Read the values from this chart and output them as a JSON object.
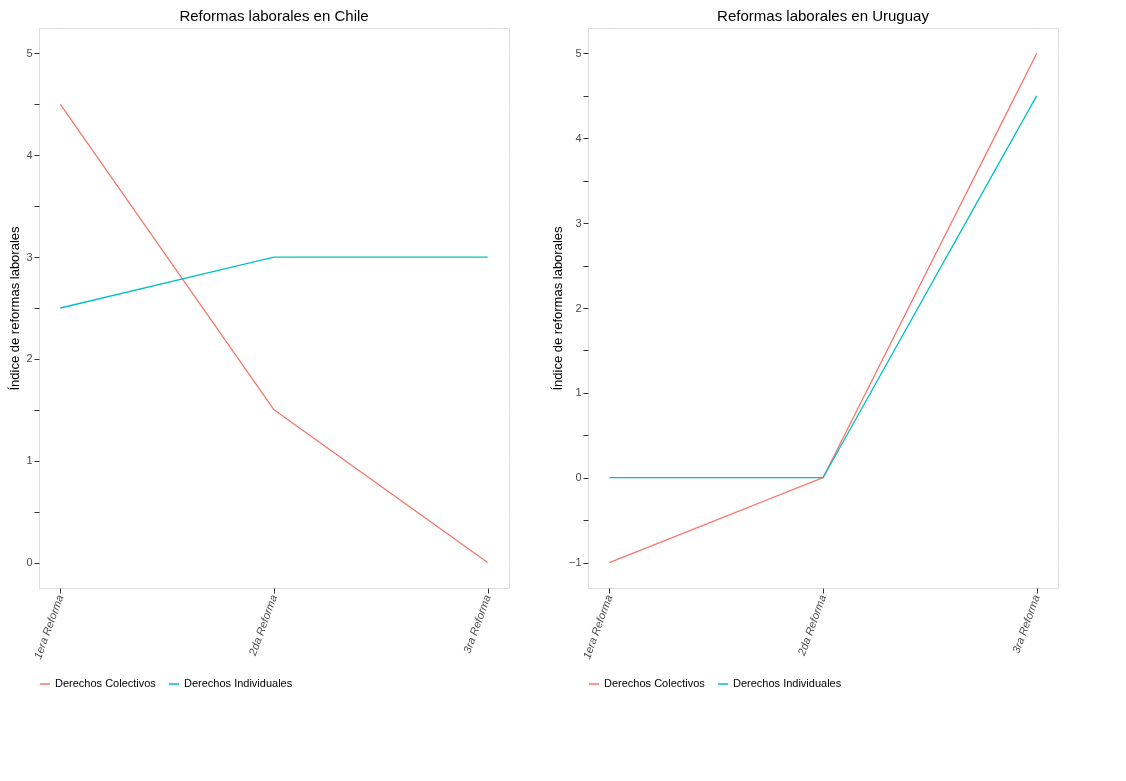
{
  "chart_data": [
    {
      "type": "line",
      "title": "Reformas laborales en Chile",
      "ylabel": "Índice de reformas laborales",
      "categories": [
        "1era Reforma",
        "2da Reforma",
        "3ra Reforma"
      ],
      "series": [
        {
          "name": "Derechos Colectivos",
          "color": "#f8766d",
          "values": [
            4.5,
            1.5,
            0
          ]
        },
        {
          "name": "Derechos Individuales",
          "color": "#00bfc4",
          "values": [
            2.5,
            3,
            3
          ]
        }
      ],
      "ylim": [
        -0.25,
        5.25
      ],
      "yticks": [
        0,
        {
          "value": 0.5,
          "label": null
        },
        1,
        {
          "value": 1.5,
          "label": null
        },
        2,
        {
          "value": 2.5,
          "label": null
        },
        3,
        {
          "value": 3.5,
          "label": null
        },
        4,
        {
          "value": 4.5,
          "label": null
        },
        5
      ],
      "grid": true,
      "legend": "bottom"
    },
    {
      "type": "line",
      "title": "Reformas laborales en Uruguay",
      "ylabel": "Índice de reformas laborales",
      "categories": [
        "1era Reforma",
        "2da Reforma",
        "3ra Reforma"
      ],
      "series": [
        {
          "name": "Derechos Colectivos",
          "color": "#f8766d",
          "values": [
            -1,
            0,
            5
          ]
        },
        {
          "name": "Derechos Individuales",
          "color": "#00bfc4",
          "values": [
            0,
            0,
            4.5
          ]
        }
      ],
      "ylim": [
        -1.3,
        5.3
      ],
      "yticks": [
        {
          "value": -1,
          "label": "−1"
        },
        {
          "value": -0.5,
          "label": null
        },
        0,
        {
          "value": 0.5,
          "label": null
        },
        1,
        {
          "value": 1.5,
          "label": null
        },
        2,
        {
          "value": 2.5,
          "label": null
        },
        3,
        {
          "value": 3.5,
          "label": null
        },
        4,
        {
          "value": 4.5,
          "label": null
        },
        5
      ],
      "grid": true,
      "legend": "bottom"
    }
  ]
}
